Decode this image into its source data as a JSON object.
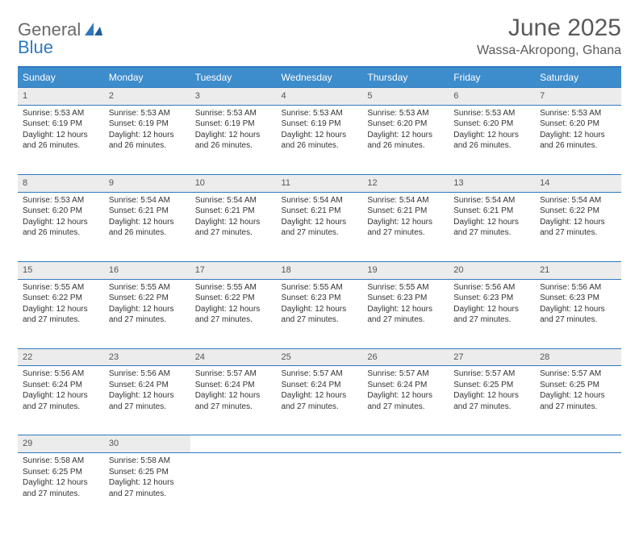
{
  "logo": {
    "word1": "General",
    "word2": "Blue"
  },
  "title": "June 2025",
  "location": "Wassa-Akropong, Ghana",
  "weekdays": [
    "Sunday",
    "Monday",
    "Tuesday",
    "Wednesday",
    "Thursday",
    "Friday",
    "Saturday"
  ],
  "colors": {
    "header_bg": "#3d8ccc",
    "border": "#2f79bd",
    "daynum_bg": "#ececec",
    "text": "#333333",
    "title_text": "#5a5a5a",
    "logo_gray": "#6a6a6a",
    "logo_blue": "#2f79bd"
  },
  "weeks": [
    [
      {
        "n": "1",
        "sr": "5:53 AM",
        "ss": "6:19 PM",
        "dl": "12 hours and 26 minutes."
      },
      {
        "n": "2",
        "sr": "5:53 AM",
        "ss": "6:19 PM",
        "dl": "12 hours and 26 minutes."
      },
      {
        "n": "3",
        "sr": "5:53 AM",
        "ss": "6:19 PM",
        "dl": "12 hours and 26 minutes."
      },
      {
        "n": "4",
        "sr": "5:53 AM",
        "ss": "6:19 PM",
        "dl": "12 hours and 26 minutes."
      },
      {
        "n": "5",
        "sr": "5:53 AM",
        "ss": "6:20 PM",
        "dl": "12 hours and 26 minutes."
      },
      {
        "n": "6",
        "sr": "5:53 AM",
        "ss": "6:20 PM",
        "dl": "12 hours and 26 minutes."
      },
      {
        "n": "7",
        "sr": "5:53 AM",
        "ss": "6:20 PM",
        "dl": "12 hours and 26 minutes."
      }
    ],
    [
      {
        "n": "8",
        "sr": "5:53 AM",
        "ss": "6:20 PM",
        "dl": "12 hours and 26 minutes."
      },
      {
        "n": "9",
        "sr": "5:54 AM",
        "ss": "6:21 PM",
        "dl": "12 hours and 26 minutes."
      },
      {
        "n": "10",
        "sr": "5:54 AM",
        "ss": "6:21 PM",
        "dl": "12 hours and 27 minutes."
      },
      {
        "n": "11",
        "sr": "5:54 AM",
        "ss": "6:21 PM",
        "dl": "12 hours and 27 minutes."
      },
      {
        "n": "12",
        "sr": "5:54 AM",
        "ss": "6:21 PM",
        "dl": "12 hours and 27 minutes."
      },
      {
        "n": "13",
        "sr": "5:54 AM",
        "ss": "6:21 PM",
        "dl": "12 hours and 27 minutes."
      },
      {
        "n": "14",
        "sr": "5:54 AM",
        "ss": "6:22 PM",
        "dl": "12 hours and 27 minutes."
      }
    ],
    [
      {
        "n": "15",
        "sr": "5:55 AM",
        "ss": "6:22 PM",
        "dl": "12 hours and 27 minutes."
      },
      {
        "n": "16",
        "sr": "5:55 AM",
        "ss": "6:22 PM",
        "dl": "12 hours and 27 minutes."
      },
      {
        "n": "17",
        "sr": "5:55 AM",
        "ss": "6:22 PM",
        "dl": "12 hours and 27 minutes."
      },
      {
        "n": "18",
        "sr": "5:55 AM",
        "ss": "6:23 PM",
        "dl": "12 hours and 27 minutes."
      },
      {
        "n": "19",
        "sr": "5:55 AM",
        "ss": "6:23 PM",
        "dl": "12 hours and 27 minutes."
      },
      {
        "n": "20",
        "sr": "5:56 AM",
        "ss": "6:23 PM",
        "dl": "12 hours and 27 minutes."
      },
      {
        "n": "21",
        "sr": "5:56 AM",
        "ss": "6:23 PM",
        "dl": "12 hours and 27 minutes."
      }
    ],
    [
      {
        "n": "22",
        "sr": "5:56 AM",
        "ss": "6:24 PM",
        "dl": "12 hours and 27 minutes."
      },
      {
        "n": "23",
        "sr": "5:56 AM",
        "ss": "6:24 PM",
        "dl": "12 hours and 27 minutes."
      },
      {
        "n": "24",
        "sr": "5:57 AM",
        "ss": "6:24 PM",
        "dl": "12 hours and 27 minutes."
      },
      {
        "n": "25",
        "sr": "5:57 AM",
        "ss": "6:24 PM",
        "dl": "12 hours and 27 minutes."
      },
      {
        "n": "26",
        "sr": "5:57 AM",
        "ss": "6:24 PM",
        "dl": "12 hours and 27 minutes."
      },
      {
        "n": "27",
        "sr": "5:57 AM",
        "ss": "6:25 PM",
        "dl": "12 hours and 27 minutes."
      },
      {
        "n": "28",
        "sr": "5:57 AM",
        "ss": "6:25 PM",
        "dl": "12 hours and 27 minutes."
      }
    ],
    [
      {
        "n": "29",
        "sr": "5:58 AM",
        "ss": "6:25 PM",
        "dl": "12 hours and 27 minutes."
      },
      {
        "n": "30",
        "sr": "5:58 AM",
        "ss": "6:25 PM",
        "dl": "12 hours and 27 minutes."
      },
      null,
      null,
      null,
      null,
      null
    ]
  ],
  "labels": {
    "sunrise": "Sunrise: ",
    "sunset": "Sunset: ",
    "daylight": "Daylight: "
  }
}
